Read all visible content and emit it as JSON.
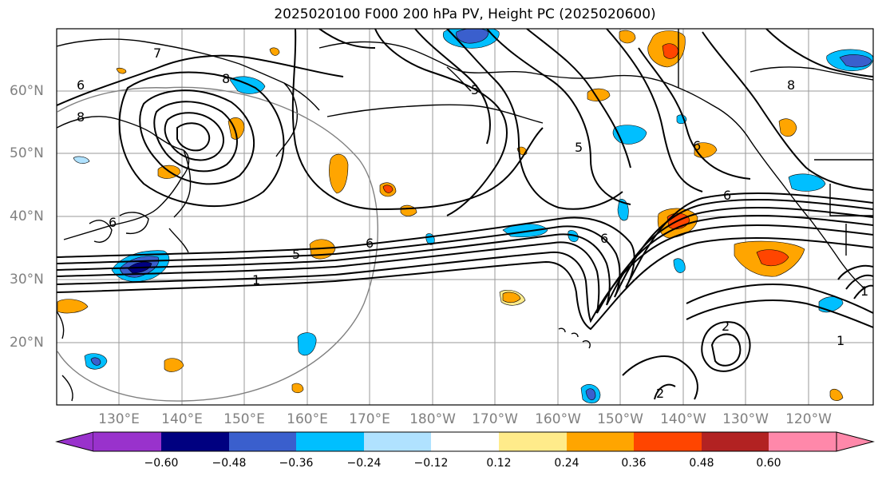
{
  "title": "2025020100 F000 200 hPa PV, Height PC (2025020600)",
  "map": {
    "region": "North Pacific",
    "lat_labels": [
      "60°N",
      "50°N",
      "40°N",
      "30°N",
      "20°N"
    ],
    "lon_labels": [
      "130°E",
      "140°E",
      "150°E",
      "160°E",
      "170°E",
      "180°W",
      "170°W",
      "160°W",
      "150°W",
      "140°W",
      "130°W",
      "120°W"
    ],
    "contour_labels": [
      "7",
      "6",
      "8",
      "8",
      "5",
      "6",
      "1",
      "6",
      "5",
      "1",
      "6",
      "6",
      "8",
      "2",
      "2",
      "1",
      "5",
      "6"
    ],
    "colors": {
      "land": "#000000",
      "contour": "#000000",
      "grid": "#9a9a9a",
      "circle": "#808080"
    }
  },
  "colorbar": {
    "ticks": [
      "−0.60",
      "−0.48",
      "−0.36",
      "−0.24",
      "−0.12",
      "0.12",
      "0.24",
      "0.36",
      "0.48",
      "0.60"
    ],
    "colors": [
      "#9932cc",
      "#000080",
      "#3a5fcd",
      "#00bfff",
      "#b0e2ff",
      "#ffffff",
      "#ffeb8a",
      "#ffa500",
      "#ff4500",
      "#b22222",
      "#ff88aa"
    ]
  }
}
